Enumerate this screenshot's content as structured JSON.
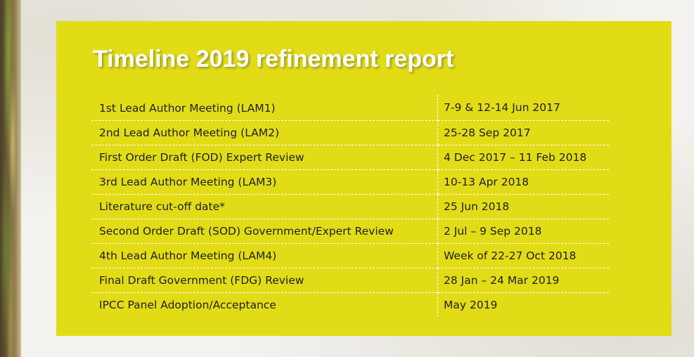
{
  "title": "Timeline 2019 refinement report",
  "rows": [
    {
      "event": "1st Lead Author Meeting (LAM1)",
      "date": "7-9 & 12-14 Jun 2017"
    },
    {
      "event": "2nd Lead Author Meeting (LAM2)",
      "date": "25-28 Sep 2017"
    },
    {
      "event": "First Order Draft (FOD) Expert Review",
      "date": "4 Dec 2017 – 11 Feb 2018"
    },
    {
      "event": "3rd Lead Author Meeting  (LAM3)",
      "date": "10-13 Apr 2018"
    },
    {
      "event": "Literature cut-off date*",
      "date": "25 Jun 2018"
    },
    {
      "event": "Second Order Draft (SOD) Government/Expert Review",
      "date": "2 Jul – 9 Sep 2018"
    },
    {
      "event": "4th Lead Author Meeting (LAM4)",
      "date": "Week of 22-27 Oct 2018"
    },
    {
      "event": "Final Draft Government (FDG) Review",
      "date": "28 Jan – 24 Mar 2019"
    },
    {
      "event": "IPCC Panel Adoption/Acceptance",
      "date": "May 2019"
    }
  ],
  "colors": {
    "panel": "#e2dc17",
    "title": "#ffffff",
    "text": "#1f1f1f",
    "divider": "#ffffff"
  }
}
